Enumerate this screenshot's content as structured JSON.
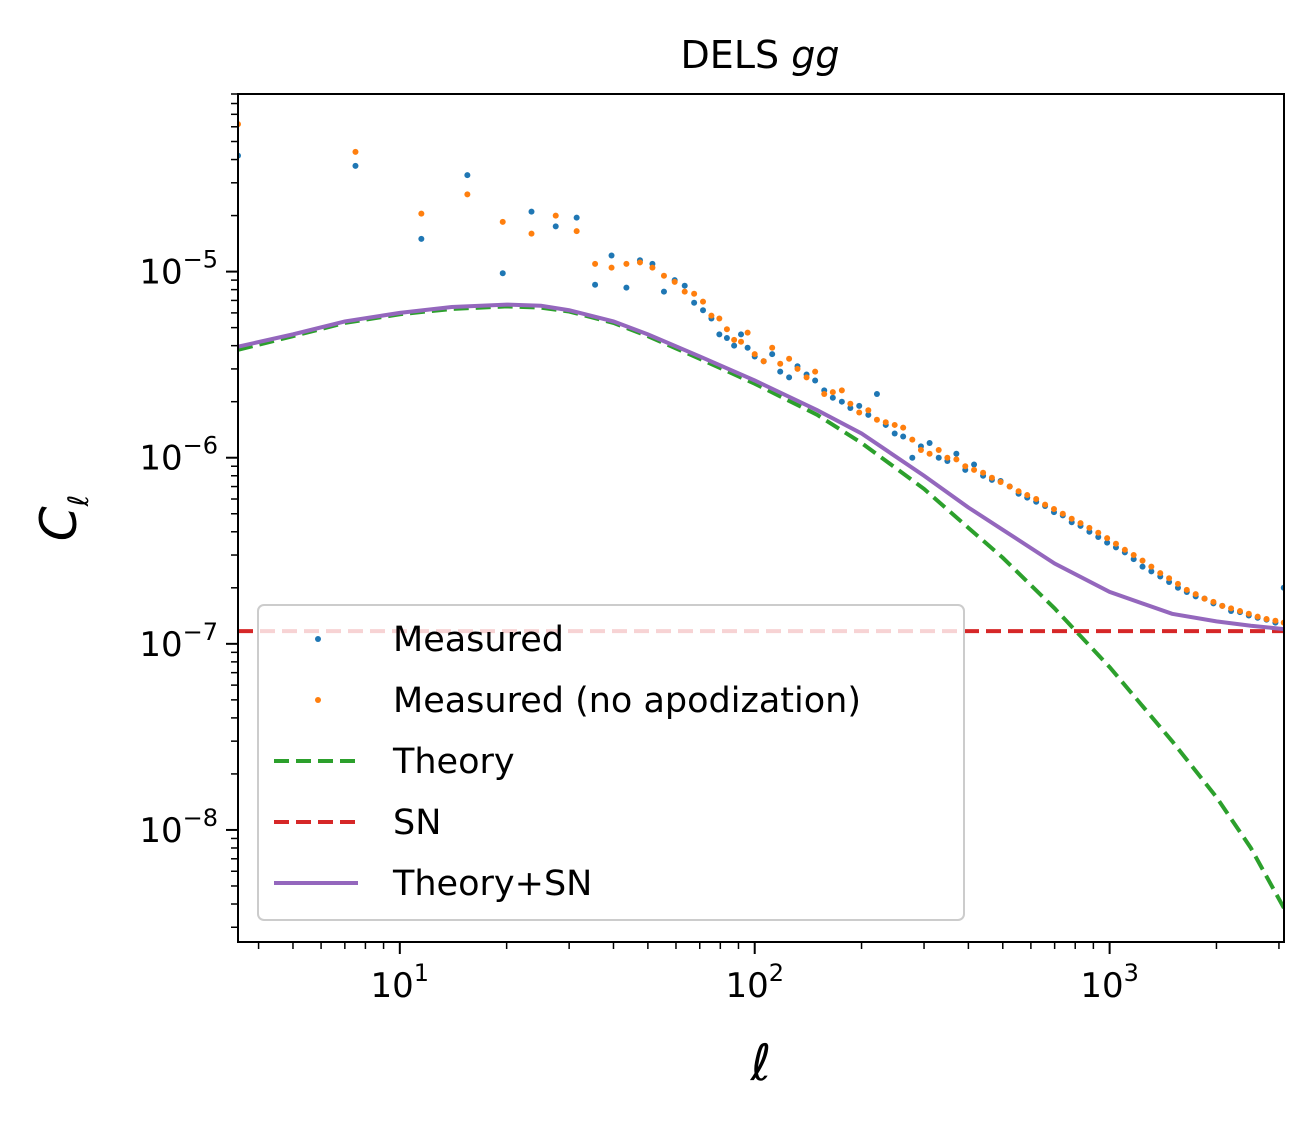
{
  "chart_data": {
    "type": "scatter",
    "title": "DELS",
    "title_italic": "gg",
    "xlabel": "ℓ",
    "ylabel": "C",
    "ylabel_sub": "ℓ",
    "x_scale": "log",
    "y_scale": "log",
    "xlim": [
      3.5,
      3100
    ],
    "ylim": [
      2.5e-09,
      9e-05
    ],
    "grid": false,
    "legend_position": "lower-left",
    "x_ticks": [
      {
        "value": 10,
        "base": "10",
        "exp": "1"
      },
      {
        "value": 100,
        "base": "10",
        "exp": "2"
      },
      {
        "value": 1000,
        "base": "10",
        "exp": "3"
      }
    ],
    "y_ticks": [
      {
        "value": 1e-05,
        "base": "10",
        "exp": "−5"
      },
      {
        "value": 1e-06,
        "base": "10",
        "exp": "−6"
      },
      {
        "value": 1e-07,
        "base": "10",
        "exp": "−7"
      },
      {
        "value": 1e-08,
        "base": "10",
        "exp": "−8"
      }
    ],
    "series": [
      {
        "name": "Measured",
        "kind": "points",
        "color": "#1f77b4",
        "points": [
          [
            3.5,
            4.2e-05
          ],
          [
            7.5,
            3.7e-05
          ],
          [
            11.5,
            1.5e-05
          ],
          [
            15.5,
            3.3e-05
          ],
          [
            19.5,
            9.8e-06
          ],
          [
            23.5,
            2.1e-05
          ],
          [
            27.5,
            1.75e-05
          ],
          [
            31.5,
            1.95e-05
          ],
          [
            35.5,
            8.5e-06
          ],
          [
            39.5,
            1.22e-05
          ],
          [
            43.5,
            8.2e-06
          ],
          [
            47.5,
            1.15e-05
          ],
          [
            51.5,
            1.1e-05
          ],
          [
            55.5,
            7.8e-06
          ],
          [
            59.5,
            9e-06
          ],
          [
            63.5,
            8.4e-06
          ],
          [
            67.5,
            6.8e-06
          ],
          [
            71.5,
            6.2e-06
          ],
          [
            75.5,
            5.6e-06
          ],
          [
            79.5,
            4.6e-06
          ],
          [
            83.5,
            4.4e-06
          ],
          [
            87.5,
            4e-06
          ],
          [
            91.5,
            4.6e-06
          ],
          [
            95.5,
            3.9e-06
          ],
          [
            100,
            3.5e-06
          ],
          [
            106,
            3.3e-06
          ],
          [
            112,
            3.6e-06
          ],
          [
            118,
            2.9e-06
          ],
          [
            125,
            2.7e-06
          ],
          [
            132,
            3.1e-06
          ],
          [
            140,
            2.8e-06
          ],
          [
            148,
            2.6e-06
          ],
          [
            157,
            2.3e-06
          ],
          [
            166,
            2.1e-06
          ],
          [
            176,
            2e-06
          ],
          [
            186,
            1.85e-06
          ],
          [
            197,
            1.9e-06
          ],
          [
            209,
            1.7e-06
          ],
          [
            221,
            2.2e-06
          ],
          [
            234,
            1.5e-06
          ],
          [
            248,
            1.35e-06
          ],
          [
            262,
            1.3e-06
          ],
          [
            278,
            1e-06
          ],
          [
            294,
            1.15e-06
          ],
          [
            311,
            1.2e-06
          ],
          [
            330,
            1e-06
          ],
          [
            349,
            9.6e-07
          ],
          [
            370,
            1.05e-06
          ],
          [
            392,
            8.6e-07
          ],
          [
            415,
            9.2e-07
          ],
          [
            440,
            8e-07
          ],
          [
            466,
            7.6e-07
          ],
          [
            493,
            7.5e-07
          ],
          [
            523,
            7e-07
          ],
          [
            554,
            6.4e-07
          ],
          [
            586,
            6.1e-07
          ],
          [
            621,
            5.8e-07
          ],
          [
            658,
            5.5e-07
          ],
          [
            697,
            5.1e-07
          ],
          [
            738,
            4.9e-07
          ],
          [
            782,
            4.5e-07
          ],
          [
            828,
            4.3e-07
          ],
          [
            877,
            4e-07
          ],
          [
            929,
            3.75e-07
          ],
          [
            984,
            3.5e-07
          ],
          [
            1042,
            3.3e-07
          ],
          [
            1104,
            3.1e-07
          ],
          [
            1169,
            2.85e-07
          ],
          [
            1238,
            2.6e-07
          ],
          [
            1311,
            2.45e-07
          ],
          [
            1389,
            2.3e-07
          ],
          [
            1471,
            2.15e-07
          ],
          [
            1558,
            2e-07
          ],
          [
            1650,
            1.9e-07
          ],
          [
            1748,
            1.8e-07
          ],
          [
            1851,
            1.75e-07
          ],
          [
            1961,
            1.65e-07
          ],
          [
            2077,
            1.6e-07
          ],
          [
            2199,
            1.5e-07
          ],
          [
            2330,
            1.48e-07
          ],
          [
            2467,
            1.42e-07
          ],
          [
            2613,
            1.38e-07
          ],
          [
            2768,
            1.35e-07
          ],
          [
            2932,
            1.3e-07
          ],
          [
            3095,
            2e-07
          ]
        ]
      },
      {
        "name": "Measured (no apodization)",
        "kind": "points",
        "color": "#ff7f0e",
        "points": [
          [
            3.5,
            6.2e-05
          ],
          [
            7.5,
            4.4e-05
          ],
          [
            11.5,
            2.05e-05
          ],
          [
            15.5,
            2.6e-05
          ],
          [
            19.5,
            1.85e-05
          ],
          [
            23.5,
            1.6e-05
          ],
          [
            27.5,
            2e-05
          ],
          [
            31.5,
            1.65e-05
          ],
          [
            35.5,
            1.1e-05
          ],
          [
            39.5,
            1.05e-05
          ],
          [
            43.5,
            1.1e-05
          ],
          [
            47.5,
            1.12e-05
          ],
          [
            51.5,
            1.05e-05
          ],
          [
            55.5,
            9.5e-06
          ],
          [
            59.5,
            8.8e-06
          ],
          [
            63.5,
            7.8e-06
          ],
          [
            67.5,
            7.6e-06
          ],
          [
            71.5,
            6.9e-06
          ],
          [
            75.5,
            5.8e-06
          ],
          [
            79.5,
            5.6e-06
          ],
          [
            83.5,
            4.9e-06
          ],
          [
            87.5,
            4.3e-06
          ],
          [
            91.5,
            4.2e-06
          ],
          [
            95.5,
            4.7e-06
          ],
          [
            100,
            3.6e-06
          ],
          [
            106,
            3.3e-06
          ],
          [
            112,
            3.9e-06
          ],
          [
            118,
            3.2e-06
          ],
          [
            125,
            3.4e-06
          ],
          [
            132,
            3e-06
          ],
          [
            140,
            2.7e-06
          ],
          [
            148,
            2.9e-06
          ],
          [
            157,
            2.2e-06
          ],
          [
            166,
            2.25e-06
          ],
          [
            176,
            2.3e-06
          ],
          [
            186,
            1.95e-06
          ],
          [
            197,
            1.75e-06
          ],
          [
            209,
            1.8e-06
          ],
          [
            221,
            1.6e-06
          ],
          [
            234,
            1.55e-06
          ],
          [
            248,
            1.5e-06
          ],
          [
            262,
            1.45e-06
          ],
          [
            278,
            1.25e-06
          ],
          [
            294,
            1.1e-06
          ],
          [
            311,
            1.05e-06
          ],
          [
            330,
            1.1e-06
          ],
          [
            349,
            1e-06
          ],
          [
            370,
            9.8e-07
          ],
          [
            392,
            9e-07
          ],
          [
            415,
            8.6e-07
          ],
          [
            440,
            8.3e-07
          ],
          [
            466,
            7.8e-07
          ],
          [
            493,
            7.4e-07
          ],
          [
            523,
            7e-07
          ],
          [
            554,
            6.6e-07
          ],
          [
            586,
            6.3e-07
          ],
          [
            621,
            6e-07
          ],
          [
            658,
            5.6e-07
          ],
          [
            697,
            5.3e-07
          ],
          [
            738,
            5e-07
          ],
          [
            782,
            4.7e-07
          ],
          [
            828,
            4.45e-07
          ],
          [
            877,
            4.2e-07
          ],
          [
            929,
            3.95e-07
          ],
          [
            984,
            3.7e-07
          ],
          [
            1042,
            3.45e-07
          ],
          [
            1104,
            3.2e-07
          ],
          [
            1169,
            3e-07
          ],
          [
            1238,
            2.8e-07
          ],
          [
            1311,
            2.6e-07
          ],
          [
            1389,
            2.4e-07
          ],
          [
            1471,
            2.25e-07
          ],
          [
            1558,
            2.1e-07
          ],
          [
            1650,
            1.95e-07
          ],
          [
            1748,
            1.85e-07
          ],
          [
            1851,
            1.75e-07
          ],
          [
            1961,
            1.68e-07
          ],
          [
            2077,
            1.6e-07
          ],
          [
            2199,
            1.55e-07
          ],
          [
            2330,
            1.5e-07
          ],
          [
            2467,
            1.45e-07
          ],
          [
            2613,
            1.4e-07
          ],
          [
            2768,
            1.36e-07
          ],
          [
            2932,
            1.33e-07
          ],
          [
            3095,
            1.3e-07
          ]
        ]
      },
      {
        "name": "Theory",
        "kind": "line",
        "dash": "dashed",
        "color": "#2ca02c",
        "points": [
          [
            3.5,
            3.8e-06
          ],
          [
            5,
            4.5e-06
          ],
          [
            7,
            5.3e-06
          ],
          [
            10,
            5.9e-06
          ],
          [
            14,
            6.3e-06
          ],
          [
            20,
            6.5e-06
          ],
          [
            25,
            6.4e-06
          ],
          [
            30,
            6.1e-06
          ],
          [
            40,
            5.3e-06
          ],
          [
            50,
            4.5e-06
          ],
          [
            70,
            3.4e-06
          ],
          [
            100,
            2.5e-06
          ],
          [
            150,
            1.7e-06
          ],
          [
            200,
            1.2e-06
          ],
          [
            300,
            6.8e-07
          ],
          [
            400,
            4.2e-07
          ],
          [
            500,
            2.9e-07
          ],
          [
            700,
            1.55e-07
          ],
          [
            1000,
            7.5e-08
          ],
          [
            1500,
            3e-08
          ],
          [
            2000,
            1.5e-08
          ],
          [
            2500,
            8e-09
          ],
          [
            3100,
            3.8e-09
          ]
        ]
      },
      {
        "name": "SN",
        "kind": "line",
        "dash": "dashed",
        "color": "#d62728",
        "points": [
          [
            3.5,
            1.17e-07
          ],
          [
            3100,
            1.17e-07
          ]
        ]
      },
      {
        "name": "Theory+SN",
        "kind": "line",
        "dash": "solid",
        "color": "#9467bd",
        "points": [
          [
            3.5,
            3.95e-06
          ],
          [
            5,
            4.6e-06
          ],
          [
            7,
            5.4e-06
          ],
          [
            10,
            6e-06
          ],
          [
            14,
            6.45e-06
          ],
          [
            20,
            6.65e-06
          ],
          [
            25,
            6.55e-06
          ],
          [
            30,
            6.2e-06
          ],
          [
            40,
            5.4e-06
          ],
          [
            50,
            4.6e-06
          ],
          [
            70,
            3.5e-06
          ],
          [
            100,
            2.6e-06
          ],
          [
            150,
            1.8e-06
          ],
          [
            200,
            1.35e-06
          ],
          [
            300,
            8e-07
          ],
          [
            400,
            5.4e-07
          ],
          [
            500,
            4.1e-07
          ],
          [
            700,
            2.7e-07
          ],
          [
            1000,
            1.9e-07
          ],
          [
            1500,
            1.45e-07
          ],
          [
            2000,
            1.32e-07
          ],
          [
            2500,
            1.25e-07
          ],
          [
            3100,
            1.2e-07
          ]
        ]
      }
    ]
  }
}
